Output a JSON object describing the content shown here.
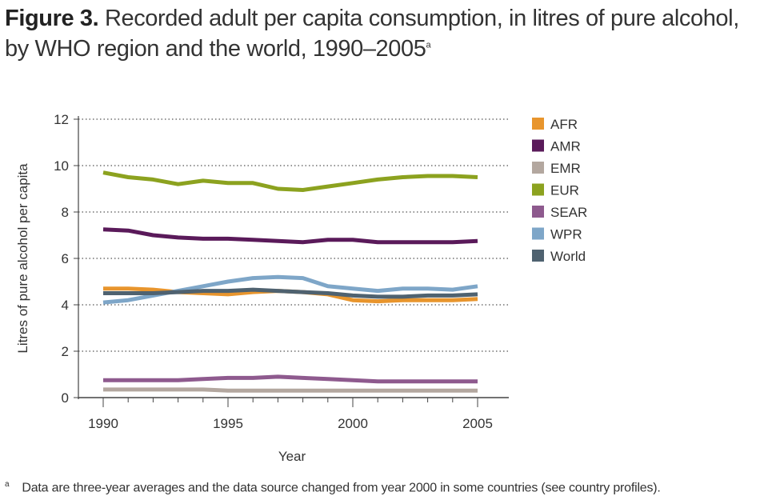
{
  "figure": {
    "label": "Figure 3.",
    "title": "Recorded adult per capita consumption, in litres of pure alcohol, by WHO region and the world, 1990–2005",
    "title_superscript": "a",
    "footnote_marker": "a",
    "footnote": "Data are three-year averages and the data source changed from year 2000 in some countries (see country profiles)."
  },
  "chart_data": {
    "type": "line",
    "xlabel": "Year",
    "ylabel": "Litres of pure alcohol per capita",
    "xlim": [
      1990,
      2005
    ],
    "ylim": [
      0,
      12
    ],
    "x_ticks": [
      1990,
      1995,
      2000,
      2005
    ],
    "y_ticks": [
      0,
      2,
      4,
      6,
      8,
      10,
      12
    ],
    "grid": "horizontal dotted",
    "legend_position": "right",
    "x": [
      1990,
      1991,
      1992,
      1993,
      1994,
      1995,
      1996,
      1997,
      1998,
      1999,
      2000,
      2001,
      2002,
      2003,
      2004,
      2005
    ],
    "series": [
      {
        "name": "AFR",
        "color": "#e8952d",
        "values": [
          4.7,
          4.7,
          4.65,
          4.55,
          4.5,
          4.45,
          4.55,
          4.6,
          4.55,
          4.45,
          4.2,
          4.15,
          4.2,
          4.2,
          4.2,
          4.25
        ]
      },
      {
        "name": "AMR",
        "color": "#5a1a5a",
        "values": [
          7.25,
          7.2,
          7.0,
          6.9,
          6.85,
          6.85,
          6.8,
          6.75,
          6.7,
          6.8,
          6.8,
          6.7,
          6.7,
          6.7,
          6.7,
          6.75
        ]
      },
      {
        "name": "EMR",
        "color": "#b3a79f",
        "values": [
          0.35,
          0.35,
          0.35,
          0.35,
          0.35,
          0.3,
          0.3,
          0.3,
          0.3,
          0.3,
          0.3,
          0.3,
          0.3,
          0.3,
          0.3,
          0.3
        ]
      },
      {
        "name": "EUR",
        "color": "#8ca21f",
        "values": [
          9.7,
          9.5,
          9.4,
          9.2,
          9.35,
          9.25,
          9.25,
          9.0,
          8.95,
          9.1,
          9.25,
          9.4,
          9.5,
          9.55,
          9.55,
          9.5
        ]
      },
      {
        "name": "SEAR",
        "color": "#8e5a8e",
        "values": [
          0.75,
          0.75,
          0.75,
          0.75,
          0.8,
          0.85,
          0.85,
          0.9,
          0.85,
          0.8,
          0.75,
          0.7,
          0.7,
          0.7,
          0.7,
          0.7
        ]
      },
      {
        "name": "WPR",
        "color": "#7ea6c8",
        "values": [
          4.1,
          4.2,
          4.4,
          4.6,
          4.8,
          5.0,
          5.15,
          5.2,
          5.15,
          4.8,
          4.7,
          4.6,
          4.7,
          4.7,
          4.65,
          4.8
        ]
      },
      {
        "name": "World",
        "color": "#4f6270",
        "values": [
          4.5,
          4.5,
          4.5,
          4.55,
          4.6,
          4.6,
          4.65,
          4.6,
          4.55,
          4.5,
          4.4,
          4.35,
          4.35,
          4.4,
          4.4,
          4.45
        ]
      }
    ]
  }
}
